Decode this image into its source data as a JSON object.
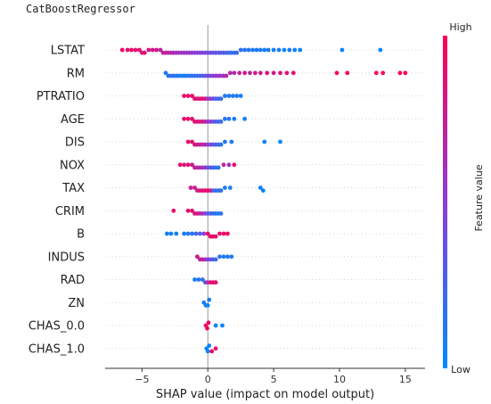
{
  "window": {
    "title": "CatBoostRegressor"
  },
  "chart_data": {
    "type": "scatter",
    "subtype": "shap-beeswarm",
    "xlabel": "SHAP value (impact on model output)",
    "xlim": [
      -7.8,
      16.5
    ],
    "xticks": [
      -5,
      0,
      5,
      10,
      15
    ],
    "tick_labels": [
      "−5",
      "0",
      "5",
      "10",
      "15"
    ],
    "zero_line": true,
    "colorbar": {
      "label": "Feature value",
      "high": "High",
      "low": "Low",
      "low_color": "#008bfb",
      "high_color": "#ff0052"
    },
    "features": [
      {
        "name": "LSTAT",
        "points": [
          {
            "x": -6.5,
            "v": 0.95
          },
          {
            "x": -6.1,
            "v": 0.9
          },
          {
            "x": -5.8,
            "v": 0.92
          },
          {
            "x": -5.5,
            "v": 0.88
          },
          {
            "x": -5.2,
            "v": 0.9
          },
          {
            "x": -5.0,
            "v": 0.85
          },
          {
            "x": -4.8,
            "v": 0.87
          },
          {
            "x": -4.5,
            "v": 0.8
          },
          {
            "x": -4.2,
            "v": 0.84
          },
          {
            "x": -3.9,
            "v": 0.82
          },
          {
            "x": -3.6,
            "v": 0.7
          },
          {
            "x": -3.4,
            "v": 0.75
          },
          {
            "x": -3.2,
            "v": 0.72
          },
          {
            "x": -3.0,
            "v": 0.68
          },
          {
            "x": -2.8,
            "v": 0.7
          },
          {
            "x": -2.6,
            "v": 0.65
          },
          {
            "x": -2.4,
            "v": 0.6
          },
          {
            "x": -2.2,
            "v": 0.62
          },
          {
            "x": -2.0,
            "v": 0.55
          },
          {
            "x": -1.8,
            "v": 0.58
          },
          {
            "x": -1.6,
            "v": 0.55
          },
          {
            "x": -1.4,
            "v": 0.6
          },
          {
            "x": -1.2,
            "v": 0.5
          },
          {
            "x": -1.0,
            "v": 0.52
          },
          {
            "x": -0.8,
            "v": 0.48
          },
          {
            "x": -0.6,
            "v": 0.45
          },
          {
            "x": -0.4,
            "v": 0.5
          },
          {
            "x": -0.2,
            "v": 0.4
          },
          {
            "x": 0.0,
            "v": 0.45
          },
          {
            "x": 0.2,
            "v": 0.38
          },
          {
            "x": 0.4,
            "v": 0.35
          },
          {
            "x": 0.6,
            "v": 0.4
          },
          {
            "x": 0.8,
            "v": 0.3
          },
          {
            "x": 1.0,
            "v": 0.32
          },
          {
            "x": 1.2,
            "v": 0.28
          },
          {
            "x": 1.4,
            "v": 0.25
          },
          {
            "x": 1.6,
            "v": 0.22
          },
          {
            "x": 1.8,
            "v": 0.2
          },
          {
            "x": 2.0,
            "v": 0.18
          },
          {
            "x": 2.2,
            "v": 0.2
          },
          {
            "x": 2.5,
            "v": 0.15
          },
          {
            "x": 2.8,
            "v": 0.15
          },
          {
            "x": 3.1,
            "v": 0.12
          },
          {
            "x": 3.4,
            "v": 0.1
          },
          {
            "x": 3.7,
            "v": 0.12
          },
          {
            "x": 4.0,
            "v": 0.1
          },
          {
            "x": 4.3,
            "v": 0.08
          },
          {
            "x": 4.6,
            "v": 0.1
          },
          {
            "x": 5.0,
            "v": 0.08
          },
          {
            "x": 5.4,
            "v": 0.1
          },
          {
            "x": 5.8,
            "v": 0.06
          },
          {
            "x": 6.2,
            "v": 0.08
          },
          {
            "x": 6.6,
            "v": 0.05
          },
          {
            "x": 7.0,
            "v": 0.04
          },
          {
            "x": 10.2,
            "v": 0.04
          },
          {
            "x": 13.1,
            "v": 0.02
          }
        ]
      },
      {
        "name": "RM",
        "points": [
          {
            "x": -3.2,
            "v": 0.15
          },
          {
            "x": -3.0,
            "v": 0.1
          },
          {
            "x": -2.8,
            "v": 0.2
          },
          {
            "x": -2.6,
            "v": 0.18
          },
          {
            "x": -2.4,
            "v": 0.1
          },
          {
            "x": -2.2,
            "v": 0.12
          },
          {
            "x": -2.0,
            "v": 0.08
          },
          {
            "x": -1.8,
            "v": 0.1
          },
          {
            "x": -1.6,
            "v": 0.15
          },
          {
            "x": -1.4,
            "v": 0.1
          },
          {
            "x": -1.2,
            "v": 0.2
          },
          {
            "x": -1.0,
            "v": 0.15
          },
          {
            "x": -0.8,
            "v": 0.25
          },
          {
            "x": -0.6,
            "v": 0.2
          },
          {
            "x": -0.4,
            "v": 0.3
          },
          {
            "x": -0.2,
            "v": 0.35
          },
          {
            "x": 0.0,
            "v": 0.4
          },
          {
            "x": 0.2,
            "v": 0.45
          },
          {
            "x": 0.4,
            "v": 0.5
          },
          {
            "x": 0.6,
            "v": 0.55
          },
          {
            "x": 0.8,
            "v": 0.6
          },
          {
            "x": 1.0,
            "v": 0.5
          },
          {
            "x": 1.2,
            "v": 0.6
          },
          {
            "x": 1.4,
            "v": 0.65
          },
          {
            "x": 1.7,
            "v": 0.7
          },
          {
            "x": 2.0,
            "v": 0.65
          },
          {
            "x": 2.4,
            "v": 0.75
          },
          {
            "x": 2.8,
            "v": 0.8
          },
          {
            "x": 3.2,
            "v": 0.7
          },
          {
            "x": 3.6,
            "v": 0.8
          },
          {
            "x": 4.0,
            "v": 0.78
          },
          {
            "x": 4.5,
            "v": 0.85
          },
          {
            "x": 5.0,
            "v": 0.8
          },
          {
            "x": 5.5,
            "v": 0.85
          },
          {
            "x": 6.0,
            "v": 0.88
          },
          {
            "x": 6.5,
            "v": 0.9
          },
          {
            "x": 9.8,
            "v": 0.95
          },
          {
            "x": 10.6,
            "v": 0.95
          },
          {
            "x": 12.8,
            "v": 0.97
          },
          {
            "x": 13.3,
            "v": 0.95
          },
          {
            "x": 14.6,
            "v": 0.97
          },
          {
            "x": 15.0,
            "v": 0.98
          }
        ]
      },
      {
        "name": "PTRATIO",
        "points": [
          {
            "x": -1.8,
            "v": 0.95
          },
          {
            "x": -1.5,
            "v": 0.9
          },
          {
            "x": -1.2,
            "v": 0.92
          },
          {
            "x": -1.0,
            "v": 0.9
          },
          {
            "x": -0.8,
            "v": 0.88
          },
          {
            "x": -0.6,
            "v": 0.85
          },
          {
            "x": -0.4,
            "v": 0.9
          },
          {
            "x": -0.2,
            "v": 0.8
          },
          {
            "x": 0.0,
            "v": 0.6
          },
          {
            "x": 0.2,
            "v": 0.5
          },
          {
            "x": 0.4,
            "v": 0.4
          },
          {
            "x": 0.6,
            "v": 0.3
          },
          {
            "x": 0.8,
            "v": 0.25
          },
          {
            "x": 1.0,
            "v": 0.2
          },
          {
            "x": 1.3,
            "v": 0.15
          },
          {
            "x": 1.6,
            "v": 0.1
          },
          {
            "x": 1.9,
            "v": 0.12
          },
          {
            "x": 2.2,
            "v": 0.1
          },
          {
            "x": 2.5,
            "v": 0.08
          }
        ]
      },
      {
        "name": "AGE",
        "points": [
          {
            "x": -1.8,
            "v": 0.9
          },
          {
            "x": -1.5,
            "v": 0.92
          },
          {
            "x": -1.2,
            "v": 0.88
          },
          {
            "x": -1.0,
            "v": 0.9
          },
          {
            "x": -0.8,
            "v": 0.85
          },
          {
            "x": -0.6,
            "v": 0.8
          },
          {
            "x": -0.4,
            "v": 0.85
          },
          {
            "x": -0.2,
            "v": 0.7
          },
          {
            "x": 0.0,
            "v": 0.6
          },
          {
            "x": 0.2,
            "v": 0.5
          },
          {
            "x": 0.4,
            "v": 0.4
          },
          {
            "x": 0.6,
            "v": 0.3
          },
          {
            "x": 0.8,
            "v": 0.25
          },
          {
            "x": 1.0,
            "v": 0.2
          },
          {
            "x": 1.3,
            "v": 0.15
          },
          {
            "x": 1.6,
            "v": 0.12
          },
          {
            "x": 2.0,
            "v": 0.1
          },
          {
            "x": 2.8,
            "v": 0.06
          }
        ]
      },
      {
        "name": "DIS",
        "points": [
          {
            "x": -1.5,
            "v": 0.9
          },
          {
            "x": -1.2,
            "v": 0.88
          },
          {
            "x": -1.0,
            "v": 0.85
          },
          {
            "x": -0.8,
            "v": 0.8
          },
          {
            "x": -0.6,
            "v": 0.75
          },
          {
            "x": -0.4,
            "v": 0.7
          },
          {
            "x": -0.2,
            "v": 0.65
          },
          {
            "x": 0.0,
            "v": 0.55
          },
          {
            "x": 0.2,
            "v": 0.45
          },
          {
            "x": 0.4,
            "v": 0.35
          },
          {
            "x": 0.6,
            "v": 0.3
          },
          {
            "x": 0.8,
            "v": 0.2
          },
          {
            "x": 1.0,
            "v": 0.15
          },
          {
            "x": 1.3,
            "v": 0.12
          },
          {
            "x": 1.8,
            "v": 0.1
          },
          {
            "x": 4.3,
            "v": 0.05
          },
          {
            "x": 5.5,
            "v": 0.04
          }
        ]
      },
      {
        "name": "NOX",
        "points": [
          {
            "x": -2.1,
            "v": 0.9
          },
          {
            "x": -1.8,
            "v": 0.85
          },
          {
            "x": -1.5,
            "v": 0.88
          },
          {
            "x": -1.2,
            "v": 0.8
          },
          {
            "x": -1.0,
            "v": 0.75
          },
          {
            "x": -0.8,
            "v": 0.7
          },
          {
            "x": -0.6,
            "v": 0.65
          },
          {
            "x": -0.4,
            "v": 0.6
          },
          {
            "x": -0.2,
            "v": 0.55
          },
          {
            "x": 0.0,
            "v": 0.4
          },
          {
            "x": 0.2,
            "v": 0.3
          },
          {
            "x": 0.4,
            "v": 0.25
          },
          {
            "x": 0.6,
            "v": 0.2
          },
          {
            "x": 0.8,
            "v": 0.15
          },
          {
            "x": 1.2,
            "v": 0.7
          },
          {
            "x": 1.6,
            "v": 0.6
          },
          {
            "x": 2.0,
            "v": 0.9
          }
        ]
      },
      {
        "name": "TAX",
        "points": [
          {
            "x": -1.3,
            "v": 0.75
          },
          {
            "x": -1.0,
            "v": 0.8
          },
          {
            "x": -0.8,
            "v": 0.75
          },
          {
            "x": -0.6,
            "v": 0.85
          },
          {
            "x": -0.4,
            "v": 0.9
          },
          {
            "x": -0.2,
            "v": 0.88
          },
          {
            "x": 0.0,
            "v": 0.9
          },
          {
            "x": 0.2,
            "v": 0.85
          },
          {
            "x": 0.4,
            "v": 0.3
          },
          {
            "x": 0.6,
            "v": 0.2
          },
          {
            "x": 0.8,
            "v": 0.15
          },
          {
            "x": 1.0,
            "v": 0.15
          },
          {
            "x": 1.3,
            "v": 0.1
          },
          {
            "x": 1.7,
            "v": 0.1
          },
          {
            "x": 4.0,
            "v": 0.05
          },
          {
            "x": 4.2,
            "v": 0.05
          }
        ]
      },
      {
        "name": "CRIM",
        "points": [
          {
            "x": -2.6,
            "v": 0.9
          },
          {
            "x": -1.5,
            "v": 0.9
          },
          {
            "x": -1.2,
            "v": 0.88
          },
          {
            "x": -1.0,
            "v": 0.85
          },
          {
            "x": -0.8,
            "v": 0.8
          },
          {
            "x": -0.6,
            "v": 0.75
          },
          {
            "x": -0.4,
            "v": 0.6
          },
          {
            "x": -0.2,
            "v": 0.5
          },
          {
            "x": 0.0,
            "v": 0.3
          },
          {
            "x": 0.2,
            "v": 0.25
          },
          {
            "x": 0.4,
            "v": 0.2
          },
          {
            "x": 0.6,
            "v": 0.15
          },
          {
            "x": 0.8,
            "v": 0.1
          },
          {
            "x": 1.0,
            "v": 0.15
          }
        ]
      },
      {
        "name": "B",
        "points": [
          {
            "x": -3.1,
            "v": 0.05
          },
          {
            "x": -2.8,
            "v": 0.08
          },
          {
            "x": -2.4,
            "v": 0.05
          },
          {
            "x": -1.8,
            "v": 0.1
          },
          {
            "x": -1.5,
            "v": 0.12
          },
          {
            "x": -1.2,
            "v": 0.15
          },
          {
            "x": -0.9,
            "v": 0.2
          },
          {
            "x": -0.6,
            "v": 0.3
          },
          {
            "x": -0.3,
            "v": 0.5
          },
          {
            "x": 0.0,
            "v": 0.9
          },
          {
            "x": 0.2,
            "v": 0.92
          },
          {
            "x": 0.4,
            "v": 0.9
          },
          {
            "x": 0.6,
            "v": 0.88
          },
          {
            "x": 0.9,
            "v": 0.9
          },
          {
            "x": 1.2,
            "v": 0.92
          },
          {
            "x": 1.5,
            "v": 0.95
          }
        ]
      },
      {
        "name": "INDUS",
        "points": [
          {
            "x": -0.8,
            "v": 0.8
          },
          {
            "x": -0.6,
            "v": 0.7
          },
          {
            "x": -0.4,
            "v": 0.75
          },
          {
            "x": -0.2,
            "v": 0.6
          },
          {
            "x": 0.0,
            "v": 0.5
          },
          {
            "x": 0.2,
            "v": 0.4
          },
          {
            "x": 0.4,
            "v": 0.3
          },
          {
            "x": 0.6,
            "v": 0.2
          },
          {
            "x": 0.9,
            "v": 0.15
          },
          {
            "x": 1.2,
            "v": 0.1
          },
          {
            "x": 1.5,
            "v": 0.12
          },
          {
            "x": 1.8,
            "v": 0.1
          }
        ]
      },
      {
        "name": "RAD",
        "points": [
          {
            "x": -1.0,
            "v": 0.1
          },
          {
            "x": -0.7,
            "v": 0.12
          },
          {
            "x": -0.4,
            "v": 0.2
          },
          {
            "x": -0.2,
            "v": 0.3
          },
          {
            "x": 0.0,
            "v": 0.7
          },
          {
            "x": 0.2,
            "v": 0.85
          },
          {
            "x": 0.4,
            "v": 0.9
          },
          {
            "x": 0.6,
            "v": 0.88
          }
        ]
      },
      {
        "name": "ZN",
        "points": [
          {
            "x": -0.3,
            "v": 0.1
          },
          {
            "x": -0.15,
            "v": 0.05
          },
          {
            "x": 0.0,
            "v": 0.05
          },
          {
            "x": 0.1,
            "v": 0.1
          }
        ]
      },
      {
        "name": "CHAS_0.0",
        "points": [
          {
            "x": -0.15,
            "v": 0.95
          },
          {
            "x": -0.05,
            "v": 0.95
          },
          {
            "x": 0.05,
            "v": 0.92
          },
          {
            "x": 0.6,
            "v": 0.05
          },
          {
            "x": 1.1,
            "v": 0.05
          }
        ]
      },
      {
        "name": "CHAS_1.0",
        "points": [
          {
            "x": -0.1,
            "v": 0.05
          },
          {
            "x": 0.0,
            "v": 0.05
          },
          {
            "x": 0.1,
            "v": 0.05
          },
          {
            "x": 0.3,
            "v": 0.9
          },
          {
            "x": 0.6,
            "v": 0.92
          }
        ]
      }
    ]
  }
}
